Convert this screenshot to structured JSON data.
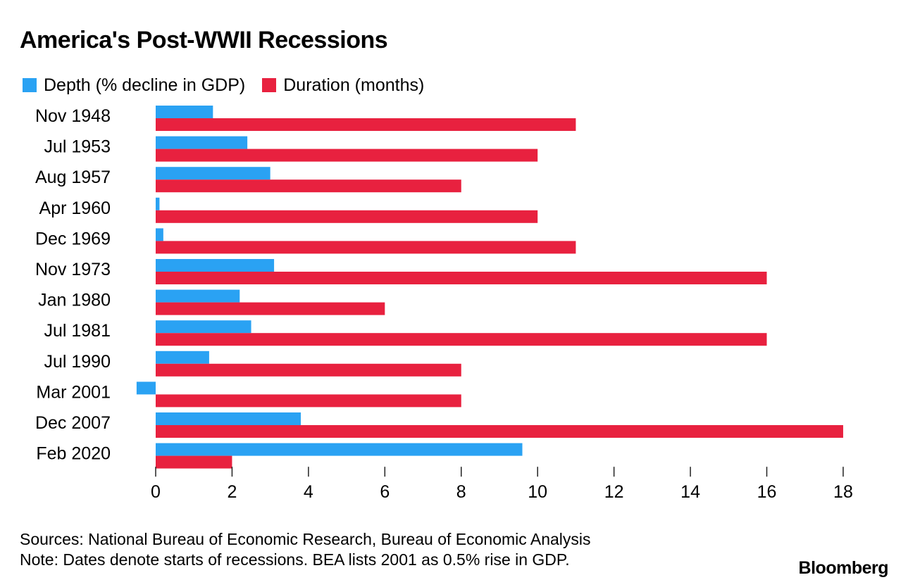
{
  "chart_data": {
    "type": "bar",
    "orientation": "horizontal",
    "title": "America's Post-WWII Recessions",
    "categories": [
      "Nov 1948",
      "Jul 1953",
      "Aug 1957",
      "Apr 1960",
      "Dec 1969",
      "Nov 1973",
      "Jan 1980",
      "Jul 1981",
      "Jul 1990",
      "Mar 2001",
      "Dec 2007",
      "Feb 2020"
    ],
    "series": [
      {
        "name": "Depth (% decline in GDP)",
        "color": "#2aa2f3",
        "values": [
          1.5,
          2.4,
          3.0,
          0.1,
          0.2,
          3.1,
          2.2,
          2.5,
          1.4,
          -0.5,
          3.8,
          9.6
        ]
      },
      {
        "name": "Duration (months)",
        "color": "#e8213f",
        "values": [
          11,
          10,
          8,
          10,
          11,
          16,
          6,
          16,
          8,
          8,
          18,
          2
        ]
      }
    ],
    "xlim": [
      -0.6,
      18
    ],
    "xticks": [
      "0",
      "2",
      "4",
      "6",
      "8",
      "10",
      "12",
      "14",
      "16",
      "18"
    ],
    "grid": false,
    "legend_position": "top-left"
  },
  "footer": {
    "sources": "Sources: National Bureau of Economic Research, Bureau of Economic Analysis",
    "note": "Note: Dates denote starts of recessions. BEA lists 2001 as 0.5% rise in GDP."
  },
  "brand": "Bloomberg"
}
